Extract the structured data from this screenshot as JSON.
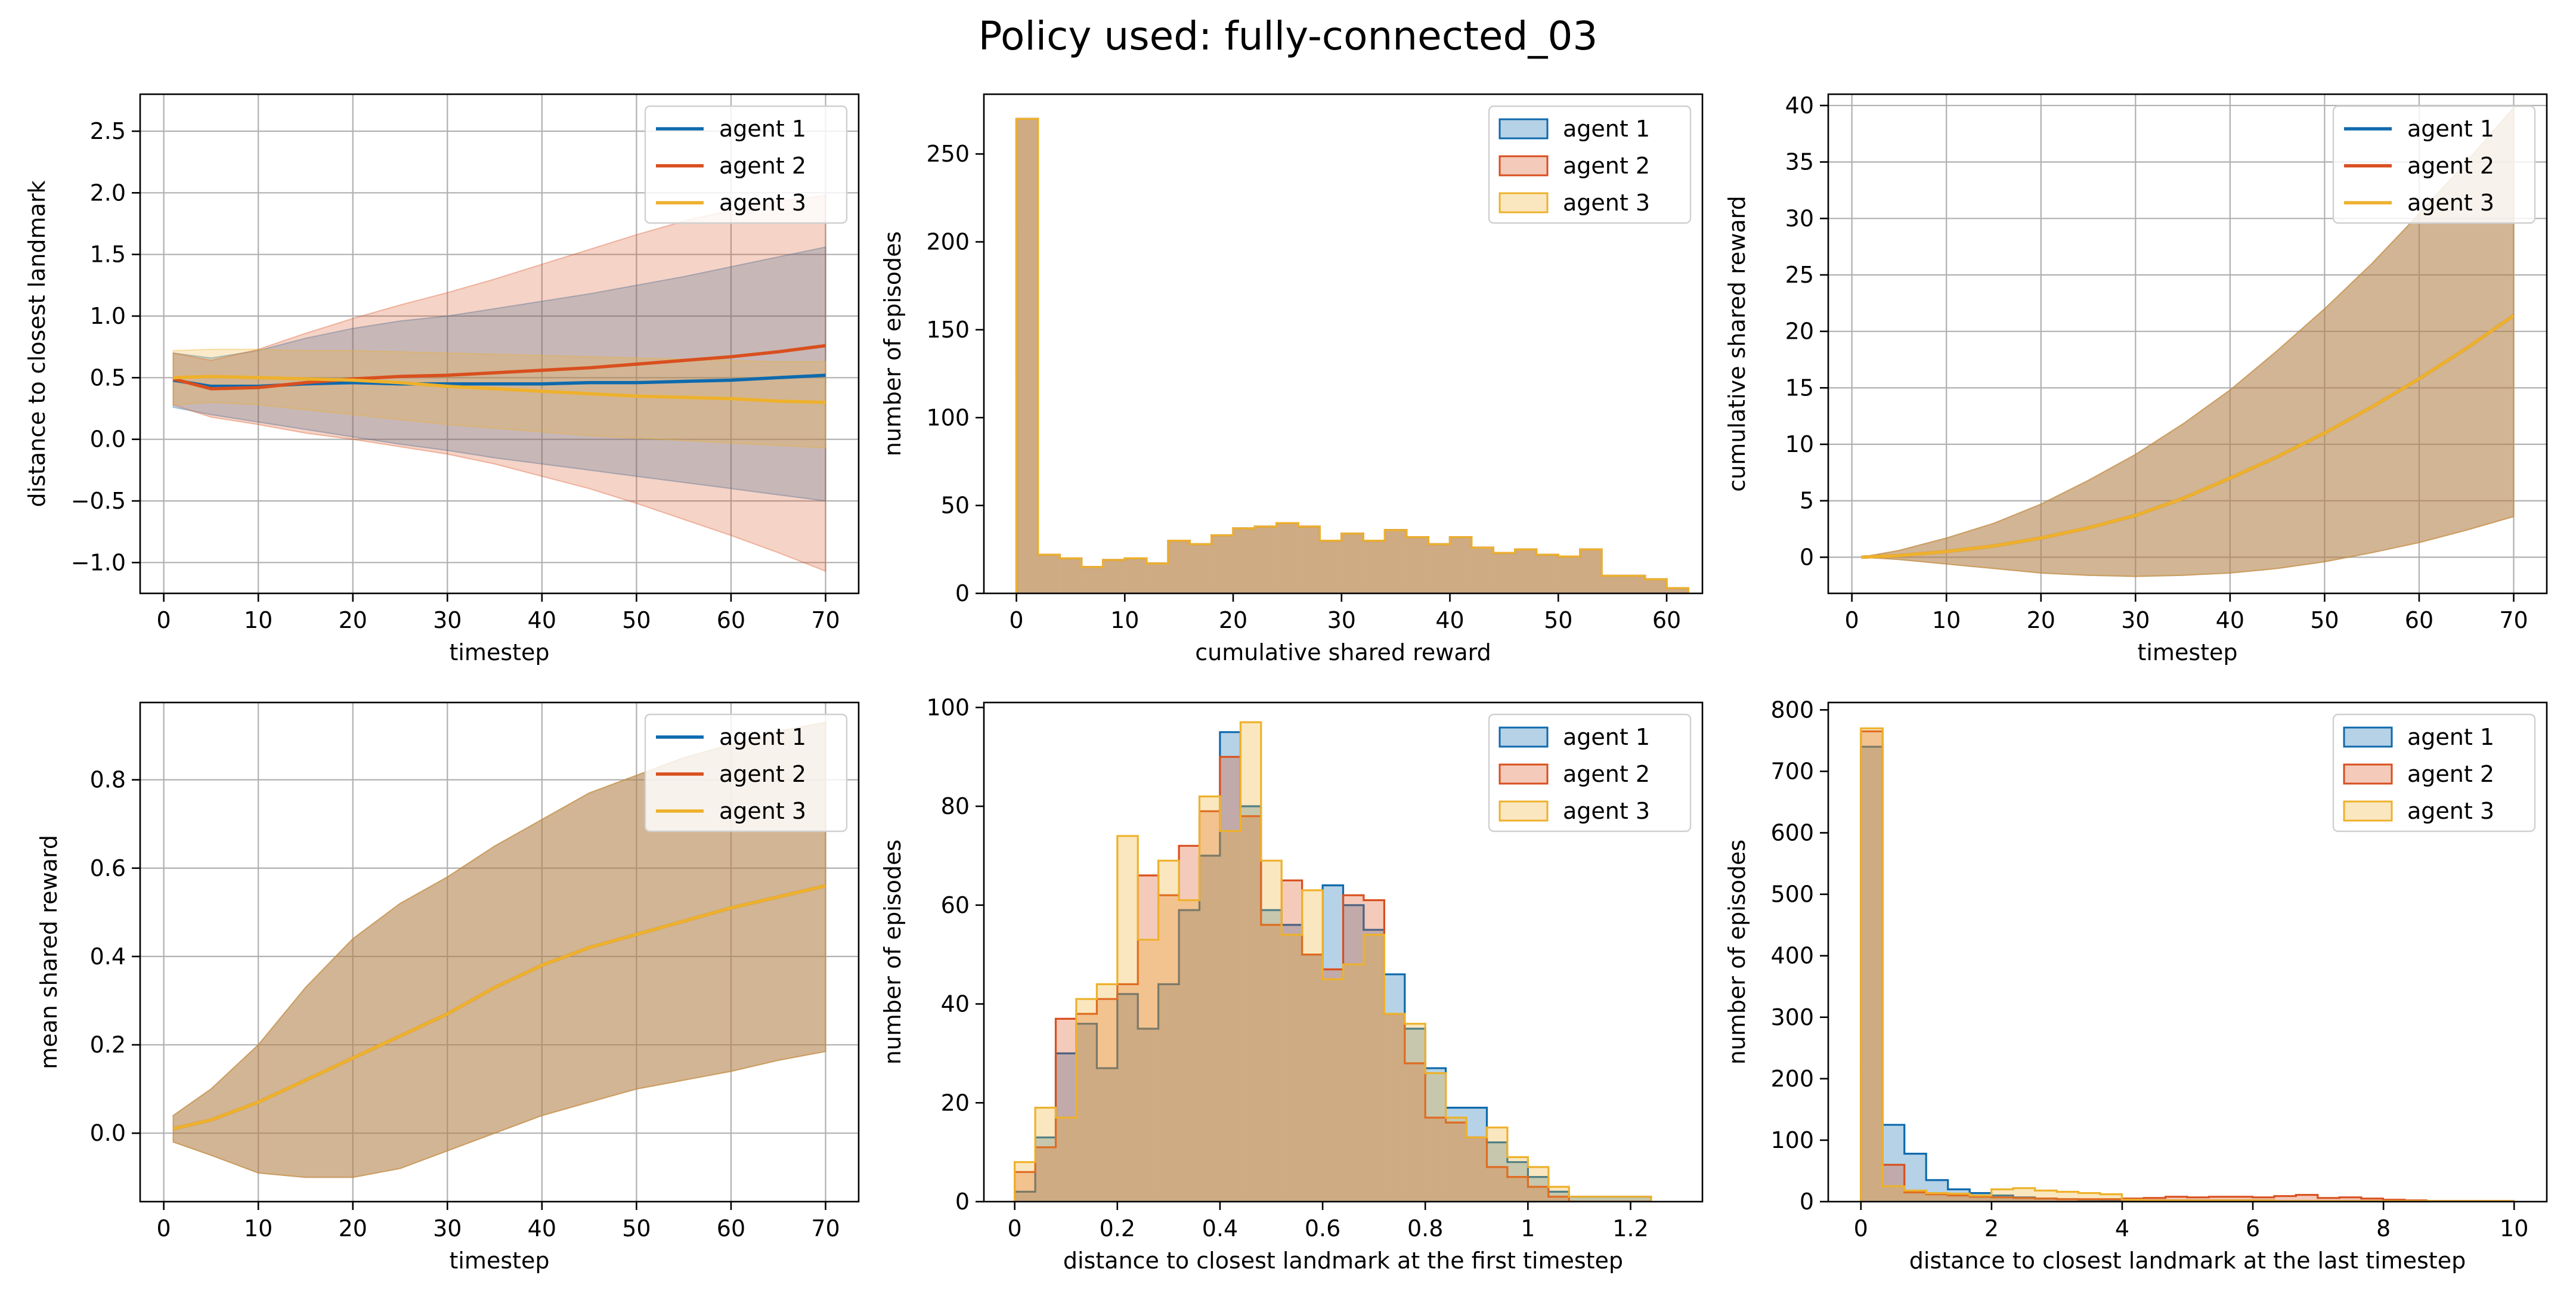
{
  "figure": {
    "title": "Policy used: fully-connected_03"
  },
  "colors": {
    "agent1": "#0e6aad",
    "agent2": "#d94f1e",
    "agent3": "#eeb12c",
    "overlap": "#b8a88f",
    "grid": "#b0b0b0"
  },
  "chart_data": [
    {
      "type": "line",
      "xlabel": "timestep",
      "ylabel": "distance to closest landmark",
      "xlim": [
        -2.5,
        73.5
      ],
      "ylim": [
        -1.25,
        2.8
      ],
      "xticks": [
        0,
        10,
        20,
        30,
        40,
        50,
        60,
        70
      ],
      "yticks": [
        -1.0,
        -0.5,
        0.0,
        0.5,
        1.0,
        1.5,
        2.0,
        2.5
      ],
      "ytick_labels": [
        "−1.0",
        "−0.5",
        "0.0",
        "0.5",
        "1.0",
        "1.5",
        "2.0",
        "2.5"
      ],
      "grid": true,
      "legend": {
        "position": "upper right",
        "kind": "line",
        "entries": [
          "agent 1",
          "agent 2",
          "agent 3"
        ]
      },
      "x": [
        1,
        5,
        10,
        15,
        20,
        25,
        30,
        35,
        40,
        45,
        50,
        55,
        60,
        65,
        70
      ],
      "series": [
        {
          "name": "agent 1",
          "color": "#0e6aad",
          "mean": [
            0.48,
            0.43,
            0.43,
            0.45,
            0.46,
            0.45,
            0.45,
            0.45,
            0.45,
            0.46,
            0.46,
            0.47,
            0.48,
            0.5,
            0.52
          ],
          "lower": [
            0.26,
            0.2,
            0.14,
            0.08,
            0.02,
            -0.04,
            -0.09,
            -0.15,
            -0.2,
            -0.25,
            -0.3,
            -0.35,
            -0.4,
            -0.45,
            -0.5
          ],
          "upper": [
            0.7,
            0.66,
            0.72,
            0.82,
            0.9,
            0.96,
            1.0,
            1.06,
            1.12,
            1.18,
            1.25,
            1.32,
            1.4,
            1.48,
            1.56
          ]
        },
        {
          "name": "agent 2",
          "color": "#d94f1e",
          "mean": [
            0.49,
            0.41,
            0.42,
            0.46,
            0.49,
            0.51,
            0.52,
            0.54,
            0.56,
            0.58,
            0.61,
            0.64,
            0.67,
            0.71,
            0.76
          ],
          "lower": [
            0.28,
            0.18,
            0.12,
            0.05,
            0.0,
            -0.06,
            -0.12,
            -0.2,
            -0.3,
            -0.4,
            -0.52,
            -0.65,
            -0.78,
            -0.92,
            -1.07
          ],
          "upper": [
            0.7,
            0.64,
            0.73,
            0.86,
            0.98,
            1.09,
            1.19,
            1.3,
            1.42,
            1.54,
            1.66,
            1.77,
            1.86,
            1.93,
            1.98
          ]
        },
        {
          "name": "agent 3",
          "color": "#eeb12c",
          "mean": [
            0.5,
            0.51,
            0.5,
            0.49,
            0.48,
            0.46,
            0.43,
            0.41,
            0.39,
            0.37,
            0.35,
            0.34,
            0.33,
            0.31,
            0.3
          ],
          "lower": [
            0.28,
            0.3,
            0.28,
            0.24,
            0.2,
            0.16,
            0.12,
            0.09,
            0.06,
            0.03,
            0.01,
            -0.01,
            -0.03,
            -0.05,
            -0.07
          ],
          "upper": [
            0.72,
            0.73,
            0.73,
            0.72,
            0.72,
            0.71,
            0.7,
            0.69,
            0.68,
            0.67,
            0.66,
            0.65,
            0.64,
            0.63,
            0.63
          ]
        }
      ]
    },
    {
      "type": "histogram",
      "xlabel": "cumulative shared reward",
      "ylabel": "number of episodes",
      "xlim": [
        -3.0,
        63.3
      ],
      "ylim": [
        0,
        284
      ],
      "xticks": [
        0,
        10,
        20,
        30,
        40,
        50,
        60
      ],
      "yticks": [
        0,
        50,
        100,
        150,
        200,
        250
      ],
      "grid": false,
      "legend": {
        "position": "upper right",
        "kind": "patch",
        "entries": [
          "agent 1",
          "agent 2",
          "agent 3"
        ]
      },
      "bin_start": 0,
      "bin_width": 2.0,
      "series": [
        {
          "name": "agent 1",
          "values": [
            270,
            22,
            20,
            15,
            19,
            20,
            17,
            30,
            28,
            33,
            37,
            38,
            40,
            38,
            30,
            34,
            30,
            36,
            32,
            28,
            32,
            26,
            23,
            25,
            22,
            21,
            25,
            10,
            10,
            8,
            3
          ]
        },
        {
          "name": "agent 2",
          "values": [
            270,
            22,
            20,
            15,
            19,
            20,
            17,
            30,
            28,
            33,
            37,
            38,
            40,
            38,
            30,
            34,
            30,
            36,
            32,
            28,
            32,
            26,
            23,
            25,
            22,
            21,
            25,
            10,
            10,
            8,
            3
          ]
        },
        {
          "name": "agent 3",
          "values": [
            270,
            22,
            20,
            15,
            19,
            20,
            17,
            30,
            28,
            33,
            37,
            38,
            40,
            38,
            30,
            34,
            30,
            36,
            32,
            28,
            32,
            26,
            23,
            25,
            22,
            21,
            25,
            10,
            10,
            8,
            3
          ]
        }
      ]
    },
    {
      "type": "line",
      "xlabel": "timestep",
      "ylabel": "cumulative shared reward",
      "xlim": [
        -2.5,
        73.5
      ],
      "ylim": [
        -3.2,
        41
      ],
      "xticks": [
        0,
        10,
        20,
        30,
        40,
        50,
        60,
        70
      ],
      "yticks": [
        0,
        5,
        10,
        15,
        20,
        25,
        30,
        35,
        40
      ],
      "ytick_labels": [
        "0",
        "5",
        "10",
        "15",
        "20",
        "25",
        "30",
        "35",
        "40"
      ],
      "grid": true,
      "legend": {
        "position": "upper right",
        "kind": "line",
        "entries": [
          "agent 1",
          "agent 2",
          "agent 3"
        ]
      },
      "x": [
        1,
        5,
        10,
        15,
        20,
        25,
        30,
        35,
        40,
        45,
        50,
        55,
        60,
        65,
        70
      ],
      "series": [
        {
          "name": "agent 1",
          "color": "#0e6aad",
          "mean": [
            0,
            0.15,
            0.5,
            1.0,
            1.7,
            2.6,
            3.7,
            5.2,
            7.0,
            8.9,
            11.0,
            13.3,
            15.8,
            18.5,
            21.4
          ],
          "lower": [
            0,
            -0.2,
            -0.6,
            -1.0,
            -1.4,
            -1.6,
            -1.7,
            -1.6,
            -1.4,
            -1.0,
            -0.4,
            0.4,
            1.3,
            2.4,
            3.6
          ],
          "upper": [
            0,
            0.6,
            1.7,
            3.0,
            4.7,
            6.8,
            9.1,
            11.8,
            14.8,
            18.3,
            22.0,
            26.0,
            30.4,
            35.0,
            39.8
          ]
        },
        {
          "name": "agent 2",
          "color": "#d94f1e",
          "mean": [
            0,
            0.15,
            0.5,
            1.0,
            1.7,
            2.6,
            3.7,
            5.2,
            7.0,
            8.9,
            11.0,
            13.3,
            15.8,
            18.5,
            21.4
          ],
          "lower": [
            0,
            -0.2,
            -0.6,
            -1.0,
            -1.4,
            -1.6,
            -1.7,
            -1.6,
            -1.4,
            -1.0,
            -0.4,
            0.4,
            1.3,
            2.4,
            3.6
          ],
          "upper": [
            0,
            0.6,
            1.7,
            3.0,
            4.7,
            6.8,
            9.1,
            11.8,
            14.8,
            18.3,
            22.0,
            26.0,
            30.4,
            35.0,
            39.8
          ]
        },
        {
          "name": "agent 3",
          "color": "#eeb12c",
          "mean": [
            0,
            0.15,
            0.5,
            1.0,
            1.7,
            2.6,
            3.7,
            5.2,
            7.0,
            8.9,
            11.0,
            13.3,
            15.8,
            18.5,
            21.4
          ],
          "lower": [
            0,
            -0.2,
            -0.6,
            -1.0,
            -1.4,
            -1.6,
            -1.7,
            -1.6,
            -1.4,
            -1.0,
            -0.4,
            0.4,
            1.3,
            2.4,
            3.6
          ],
          "upper": [
            0,
            0.6,
            1.7,
            3.0,
            4.7,
            6.8,
            9.1,
            11.8,
            14.8,
            18.3,
            22.0,
            26.0,
            30.4,
            35.0,
            39.8
          ]
        }
      ]
    },
    {
      "type": "line",
      "xlabel": "timestep",
      "ylabel": "mean shared reward",
      "xlim": [
        -2.5,
        73.5
      ],
      "ylim": [
        -0.155,
        0.975
      ],
      "xticks": [
        0,
        10,
        20,
        30,
        40,
        50,
        60,
        70
      ],
      "yticks": [
        0.0,
        0.2,
        0.4,
        0.6,
        0.8
      ],
      "ytick_labels": [
        "0.0",
        "0.2",
        "0.4",
        "0.6",
        "0.8"
      ],
      "grid": true,
      "legend": {
        "position": "upper right",
        "kind": "line",
        "entries": [
          "agent 1",
          "agent 2",
          "agent 3"
        ]
      },
      "x": [
        1,
        5,
        10,
        15,
        20,
        25,
        30,
        35,
        40,
        45,
        50,
        55,
        60,
        65,
        70
      ],
      "series": [
        {
          "name": "agent 1",
          "color": "#0e6aad",
          "mean": [
            0.01,
            0.03,
            0.07,
            0.12,
            0.17,
            0.22,
            0.27,
            0.33,
            0.38,
            0.42,
            0.45,
            0.48,
            0.51,
            0.535,
            0.56
          ],
          "lower": [
            -0.02,
            -0.05,
            -0.09,
            -0.1,
            -0.1,
            -0.08,
            -0.04,
            0.0,
            0.04,
            0.07,
            0.1,
            0.12,
            0.14,
            0.165,
            0.185
          ],
          "upper": [
            0.04,
            0.1,
            0.2,
            0.33,
            0.44,
            0.52,
            0.58,
            0.65,
            0.71,
            0.77,
            0.81,
            0.85,
            0.88,
            0.91,
            0.93
          ]
        },
        {
          "name": "agent 2",
          "color": "#d94f1e",
          "mean": [
            0.01,
            0.03,
            0.07,
            0.12,
            0.17,
            0.22,
            0.27,
            0.33,
            0.38,
            0.42,
            0.45,
            0.48,
            0.51,
            0.535,
            0.56
          ],
          "lower": [
            -0.02,
            -0.05,
            -0.09,
            -0.1,
            -0.1,
            -0.08,
            -0.04,
            0.0,
            0.04,
            0.07,
            0.1,
            0.12,
            0.14,
            0.165,
            0.185
          ],
          "upper": [
            0.04,
            0.1,
            0.2,
            0.33,
            0.44,
            0.52,
            0.58,
            0.65,
            0.71,
            0.77,
            0.81,
            0.85,
            0.88,
            0.91,
            0.93
          ]
        },
        {
          "name": "agent 3",
          "color": "#eeb12c",
          "mean": [
            0.01,
            0.03,
            0.07,
            0.12,
            0.17,
            0.22,
            0.27,
            0.33,
            0.38,
            0.42,
            0.45,
            0.48,
            0.51,
            0.535,
            0.56
          ],
          "lower": [
            -0.02,
            -0.05,
            -0.09,
            -0.1,
            -0.1,
            -0.08,
            -0.04,
            0.0,
            0.04,
            0.07,
            0.1,
            0.12,
            0.14,
            0.165,
            0.185
          ],
          "upper": [
            0.04,
            0.1,
            0.2,
            0.33,
            0.44,
            0.52,
            0.58,
            0.65,
            0.71,
            0.77,
            0.81,
            0.85,
            0.88,
            0.91,
            0.93
          ]
        }
      ]
    },
    {
      "type": "histogram",
      "xlabel": "distance to closest landmark at the first timestep",
      "ylabel": "number of episodes",
      "xlim": [
        -0.06,
        1.34
      ],
      "ylim": [
        0,
        101
      ],
      "xticks": [
        0.0,
        0.2,
        0.4,
        0.6,
        0.8,
        1.0,
        1.2
      ],
      "yticks": [
        0,
        20,
        40,
        60,
        80,
        100
      ],
      "grid": false,
      "legend": {
        "position": "upper right",
        "kind": "patch",
        "entries": [
          "agent 1",
          "agent 2",
          "agent 3"
        ]
      },
      "bin_start": 0.0,
      "bin_width": 0.04,
      "series": [
        {
          "name": "agent 1",
          "values": [
            2,
            13,
            30,
            36,
            27,
            42,
            35,
            44,
            59,
            70,
            95,
            80,
            59,
            56,
            50,
            64,
            60,
            55,
            46,
            35,
            27,
            19,
            19,
            12,
            8,
            5,
            2,
            1,
            1,
            1,
            1
          ]
        },
        {
          "name": "agent 2",
          "values": [
            6,
            11,
            37,
            38,
            41,
            44,
            66,
            62,
            72,
            79,
            90,
            78,
            56,
            65,
            50,
            47,
            62,
            61,
            38,
            28,
            17,
            16,
            13,
            7,
            5,
            3,
            1,
            0,
            0,
            0,
            0
          ]
        },
        {
          "name": "agent 3",
          "values": [
            8,
            19,
            17,
            41,
            44,
            74,
            53,
            69,
            61,
            82,
            75,
            97,
            69,
            54,
            63,
            45,
            48,
            54,
            38,
            36,
            26,
            17,
            13,
            15,
            9,
            7,
            3,
            1,
            1,
            1,
            1
          ]
        }
      ]
    },
    {
      "type": "histogram",
      "xlabel": "distance to closest landmark at the last timestep",
      "ylabel": "number of episodes",
      "xlim": [
        -0.5,
        10.5
      ],
      "ylim": [
        0,
        812
      ],
      "xticks": [
        0,
        2,
        4,
        6,
        8,
        10
      ],
      "yticks": [
        0,
        100,
        200,
        300,
        400,
        500,
        600,
        700,
        800
      ],
      "grid": false,
      "legend": {
        "position": "upper right",
        "kind": "patch",
        "entries": [
          "agent 1",
          "agent 2",
          "agent 3"
        ]
      },
      "bin_start": 0.0,
      "bin_width": 0.333,
      "series": [
        {
          "name": "agent 1",
          "values": [
            740,
            125,
            78,
            35,
            20,
            14,
            10,
            7,
            5,
            4,
            3,
            2,
            2,
            2,
            2,
            2,
            2,
            2,
            2,
            1,
            1,
            1,
            1,
            1,
            1,
            1,
            1,
            1,
            1,
            1
          ]
        },
        {
          "name": "agent 2",
          "values": [
            765,
            60,
            15,
            12,
            10,
            8,
            7,
            6,
            5,
            4,
            4,
            4,
            5,
            6,
            8,
            7,
            8,
            8,
            7,
            9,
            11,
            6,
            7,
            5,
            3,
            2,
            1,
            1,
            1,
            1
          ]
        },
        {
          "name": "agent 3",
          "values": [
            770,
            25,
            18,
            14,
            13,
            10,
            20,
            22,
            18,
            16,
            14,
            12,
            3,
            2,
            2,
            2,
            2,
            2,
            2,
            1,
            1,
            1,
            1,
            1,
            1,
            1,
            1,
            1,
            1,
            1
          ]
        }
      ]
    }
  ]
}
